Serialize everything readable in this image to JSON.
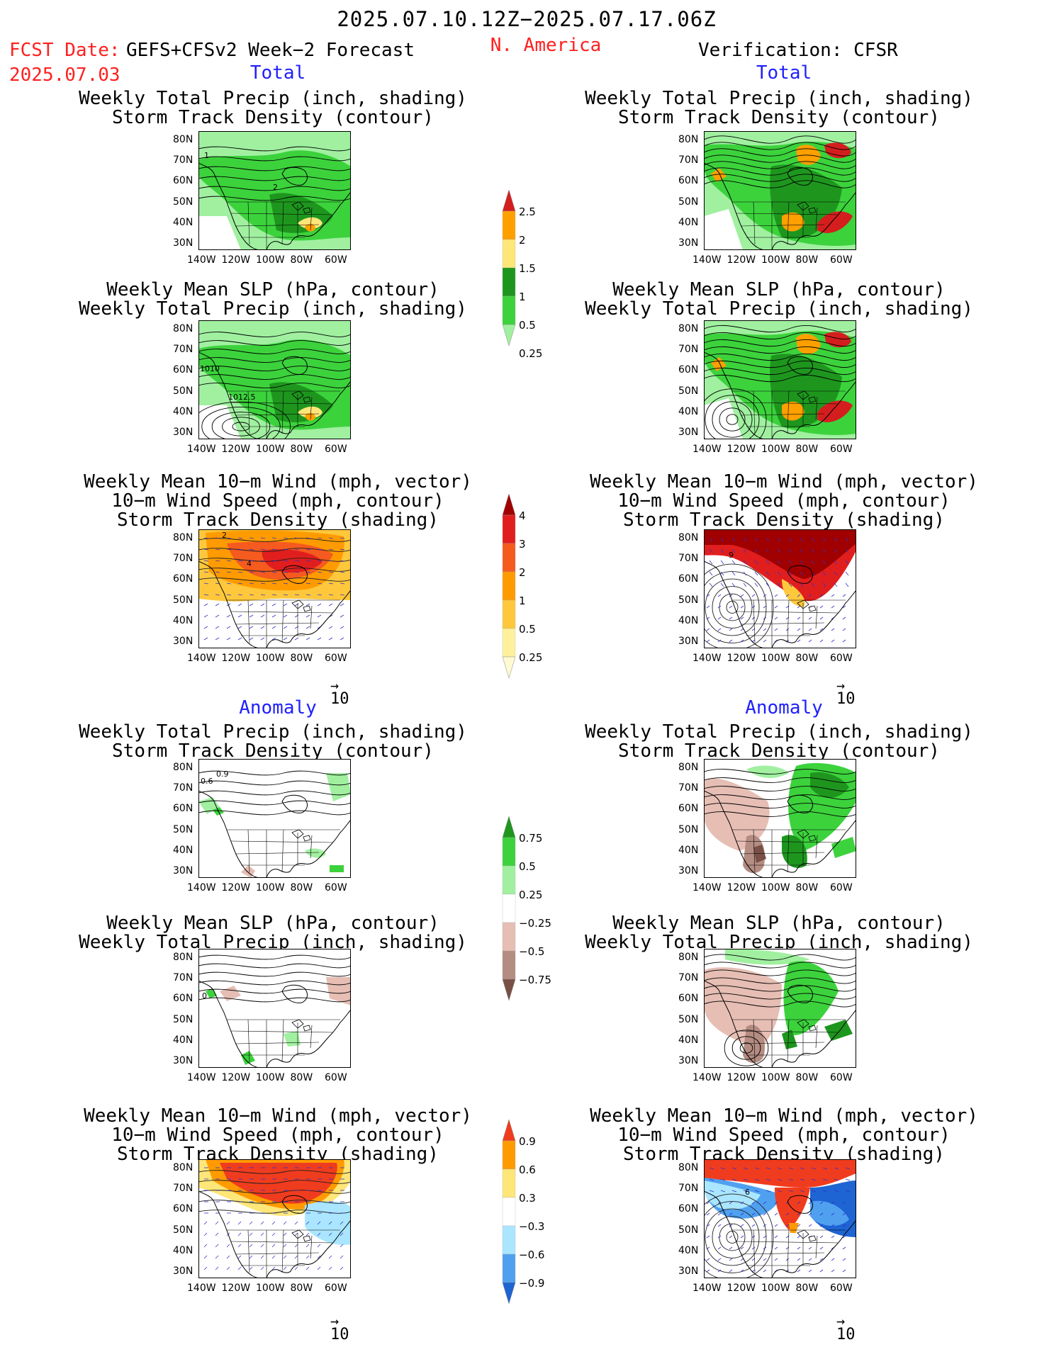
{
  "header": {
    "date_range": "2025.07.10.12Z−2025.07.17.06Z",
    "fcst_date_label": "FCST Date:",
    "fcst_date": "2025.07.03",
    "model": "GEFS+CFSv2 Week−2 Forecast",
    "region": "N. America",
    "verification": "Verification: CFSR"
  },
  "sections": {
    "total": "Total",
    "anomaly": "Anomaly"
  },
  "panel_titles": {
    "precip_storm": [
      "Weekly Total Precip (inch, shading)",
      "Storm Track Density (contour)"
    ],
    "slp_precip": [
      "Weekly Mean SLP (hPa, contour)",
      "Weekly Total Precip (inch, shading)"
    ],
    "wind_storm": [
      "Weekly Mean 10−m Wind (mph, vector)",
      "10−m Wind Speed (mph, contour)",
      "Storm Track Density (shading)"
    ]
  },
  "axes": {
    "lat_labels": [
      "80N",
      "70N",
      "60N",
      "50N",
      "40N",
      "30N"
    ],
    "lon_labels": [
      "140W",
      "120W",
      "100W",
      "80W",
      "60W"
    ]
  },
  "vector_ref": {
    "arrow": "→",
    "value": "10"
  },
  "contour_labels": {
    "fcst_total_precip": [
      "1",
      "2"
    ],
    "fcst_total_slp": [
      "1010",
      "1012.5"
    ],
    "fcst_total_wind": [
      "2",
      "4"
    ],
    "cfsr_total_wind": [
      "9"
    ],
    "fcst_anom_precip": [
      "0.6",
      "0.9"
    ],
    "fcst_anom_slp": [
      "0"
    ],
    "cfsr_anom_wind": [
      "6"
    ]
  },
  "colorbars": {
    "precip_total": {
      "labels": [
        "2.5",
        "2",
        "1.5",
        "1",
        "0.5",
        "0.25"
      ],
      "colors": [
        "#d41e1e",
        "#ffa000",
        "#ffe678",
        "#1e961e",
        "#3cd23c",
        "#a0f0a0"
      ]
    },
    "storm_total": {
      "labels": [
        "4",
        "3",
        "2",
        "1",
        "0.5",
        "0.25"
      ],
      "colors": [
        "#a00000",
        "#e11e1e",
        "#f55a1e",
        "#ff9b00",
        "#ffc83c",
        "#fff09b",
        "#fffad2"
      ]
    },
    "precip_anom": {
      "labels": [
        "0.75",
        "0.5",
        "0.25",
        "−0.25",
        "−0.5",
        "−0.75"
      ],
      "colors": [
        "#1e961e",
        "#3cd23c",
        "#a0f0a0",
        "#ffffff",
        "#e6beb4",
        "#b48c82",
        "#785046"
      ]
    },
    "storm_anom": {
      "labels": [
        "0.9",
        "0.6",
        "0.3",
        "−0.3",
        "−0.6",
        "−0.9"
      ],
      "colors": [
        "#f03c1e",
        "#ff9b00",
        "#ffe678",
        "#ffffff",
        "#aae6ff",
        "#50a0f0",
        "#1e64d2"
      ]
    }
  },
  "colors": {
    "header_red": "#ff2020",
    "section_blue": "#2020ff",
    "vector_blue": "#3030c8"
  }
}
